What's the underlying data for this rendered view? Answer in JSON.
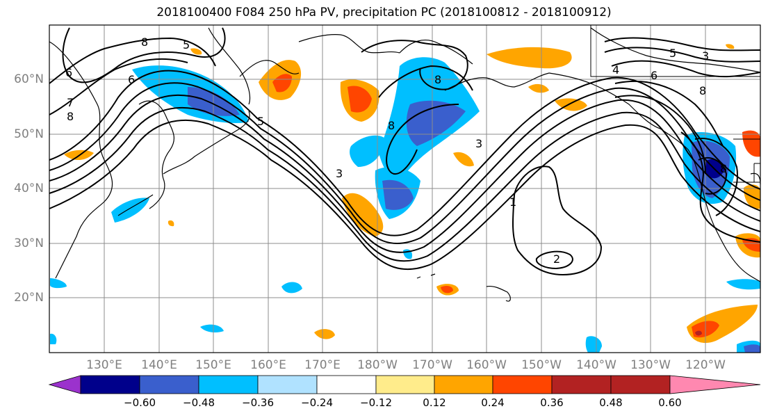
{
  "title": "2018100400 F084 250 hPa PV, precipitation PC (2018100812 - 2018100912)",
  "lat_labels": [
    "60°N",
    "50°N",
    "40°N",
    "30°N",
    "20°N"
  ],
  "lon_labels": [
    "130°E",
    "140°E",
    "150°E",
    "160°E",
    "170°E",
    "180°W",
    "170°W",
    "160°W",
    "150°W",
    "140°W",
    "130°W",
    "120°W"
  ],
  "colorbar": {
    "ticks": [
      "−0.60",
      "−0.48",
      "−0.36",
      "−0.24",
      "−0.12",
      "0.12",
      "0.24",
      "0.36",
      "0.48",
      "0.60"
    ],
    "colors": [
      "#9b32cd",
      "#00008b",
      "#3a5fcd",
      "#00bfff",
      "#b0e2ff",
      "#ffffff",
      "#ffec8b",
      "#ffa500",
      "#ff4500",
      "#b22222",
      "#ff88b0"
    ]
  },
  "contour_labels": [
    "6",
    "7",
    "8",
    "5",
    "6",
    "8",
    "5",
    "3",
    "8",
    "8",
    "3",
    "1",
    "2",
    "5",
    "4",
    "6",
    "8",
    "3",
    "8"
  ],
  "map_style": {
    "grid": true,
    "coastline_color": "#000000",
    "contour_color": "#000000"
  }
}
